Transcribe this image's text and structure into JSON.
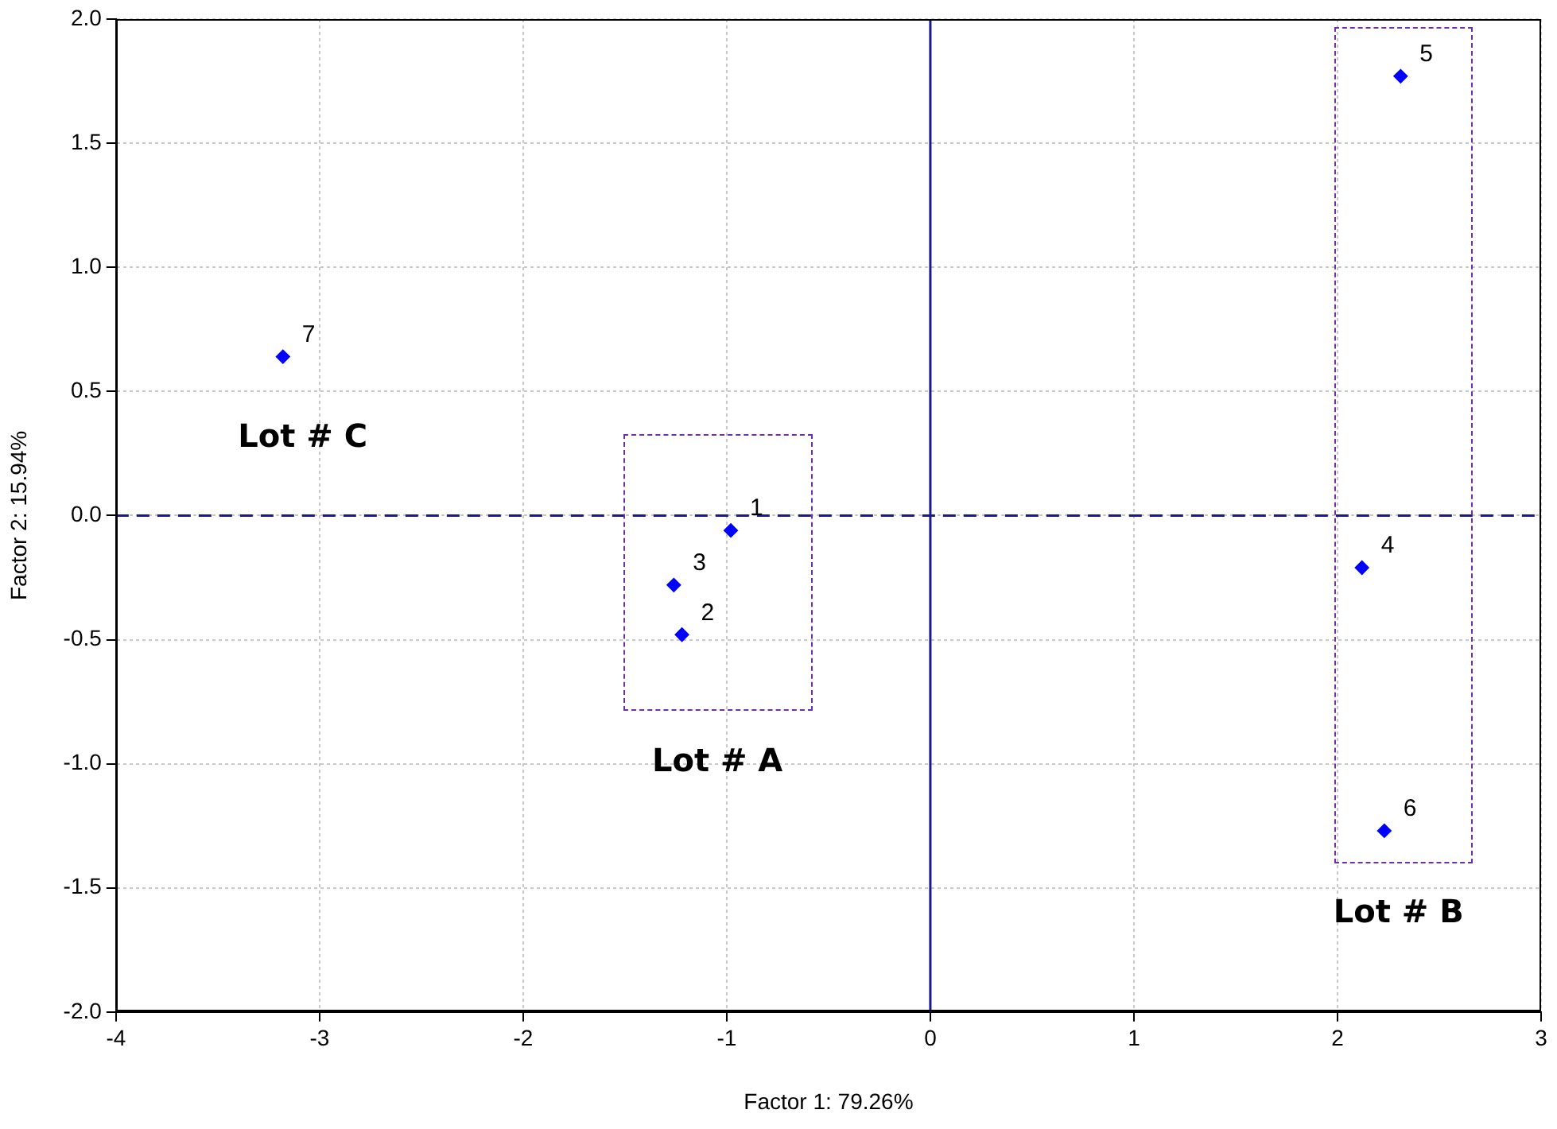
{
  "chart_data": {
    "type": "scatter",
    "xlabel": "Factor 1: 79.26%",
    "ylabel": "Factor 2: 15.94%",
    "series": [
      {
        "color": "#0000ff",
        "x": [
          -0.98,
          -1.22,
          -1.26,
          2.12,
          2.31,
          2.23,
          -3.18
        ],
        "values": [
          -0.06,
          -0.48,
          -0.28,
          -0.21,
          1.77,
          -1.27,
          0.64
        ]
      }
    ],
    "xlim": [
      -4,
      3
    ],
    "xticks": [
      -4,
      -3,
      -2,
      -1,
      0,
      1,
      2,
      3
    ],
    "ylim": [
      -2,
      2
    ],
    "yticks": [
      {
        "value": -2,
        "label": "-2.0"
      },
      {
        "value": -1.5,
        "label": "-1.5"
      },
      {
        "value": -1,
        "label": "-1.0"
      },
      {
        "value": -0.5,
        "label": "-0.5"
      },
      {
        "value": 0,
        "label": "0.0"
      },
      {
        "value": 0.5,
        "label": "0.5"
      },
      {
        "value": 1,
        "label": "1.0"
      },
      {
        "value": 1.5,
        "label": "1.5"
      },
      {
        "value": 2,
        "label": "2.0"
      }
    ],
    "ref_lines": [
      {
        "axis": "y",
        "value": 0,
        "color": "#1a1a8c",
        "line_style": "dashed"
      },
      {
        "axis": "x",
        "value": 0,
        "color": "#1a1a8c",
        "line_style": "solid"
      }
    ],
    "annotations": [
      {
        "text": "1",
        "x": -0.98,
        "y": -0.06
      },
      {
        "text": "2",
        "x": -1.22,
        "y": -0.48
      },
      {
        "text": "3",
        "x": -1.26,
        "y": -0.28
      },
      {
        "text": "4",
        "x": 2.12,
        "y": -0.21
      },
      {
        "text": "5",
        "x": 2.31,
        "y": 1.77
      },
      {
        "text": "6",
        "x": 2.23,
        "y": -1.27
      },
      {
        "text": "7",
        "x": -3.18,
        "y": 0.64
      },
      "Lot # C",
      "Lot # A",
      "Lot # B"
    ],
    "grid": true,
    "marker": "diamond"
  }
}
